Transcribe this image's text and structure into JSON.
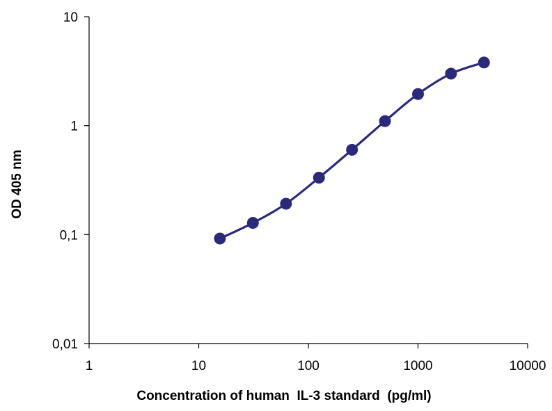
{
  "chart_data": {
    "type": "line",
    "xlabel": "Concentration of human  IL-3 standard  (pg/ml)",
    "ylabel": "OD 405 nm",
    "x_scale": "log",
    "y_scale": "log",
    "xlim": [
      1,
      10000
    ],
    "ylim": [
      0.01,
      10
    ],
    "x_ticks": [
      {
        "value": 1,
        "label": "1"
      },
      {
        "value": 10,
        "label": "10"
      },
      {
        "value": 100,
        "label": "100"
      },
      {
        "value": 1000,
        "label": "1000"
      },
      {
        "value": 10000,
        "label": "10000"
      }
    ],
    "y_ticks": [
      {
        "value": 0.01,
        "label": "0,01"
      },
      {
        "value": 0.1,
        "label": "0,1"
      },
      {
        "value": 1,
        "label": "1"
      },
      {
        "value": 10,
        "label": "10"
      }
    ],
    "grid": false,
    "legend": "none",
    "series": [
      {
        "color": "#2b2a7a",
        "smooth": true,
        "marker": "circle",
        "points": [
          {
            "x": 15.6,
            "y": 0.092
          },
          {
            "x": 31.2,
            "y": 0.128
          },
          {
            "x": 62.5,
            "y": 0.192
          },
          {
            "x": 125,
            "y": 0.333
          },
          {
            "x": 250,
            "y": 0.6
          },
          {
            "x": 500,
            "y": 1.1
          },
          {
            "x": 1000,
            "y": 1.95
          },
          {
            "x": 2000,
            "y": 3.0
          },
          {
            "x": 4000,
            "y": 3.8
          }
        ]
      }
    ]
  }
}
